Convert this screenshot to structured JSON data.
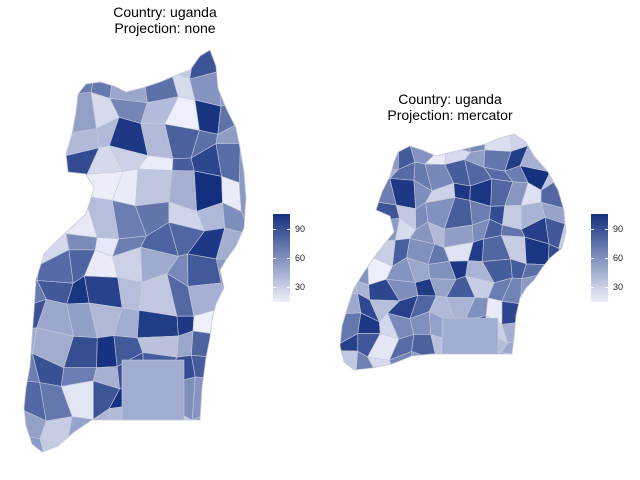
{
  "panels": [
    {
      "title_line1": "Country: uganda",
      "title_line2": "Projection: none"
    },
    {
      "title_line1": "Country: uganda",
      "title_line2": "Projection: mercator"
    }
  ],
  "legend": {
    "ticks": [
      "90",
      "60",
      "30"
    ],
    "tick_values": [
      90,
      60,
      30
    ],
    "range": [
      15,
      105
    ],
    "color_low": "#eef0fb",
    "color_high": "#13307f"
  },
  "colors": {
    "low": "#eef0fb",
    "high": "#13307f",
    "border": "#c6c8dc"
  }
}
